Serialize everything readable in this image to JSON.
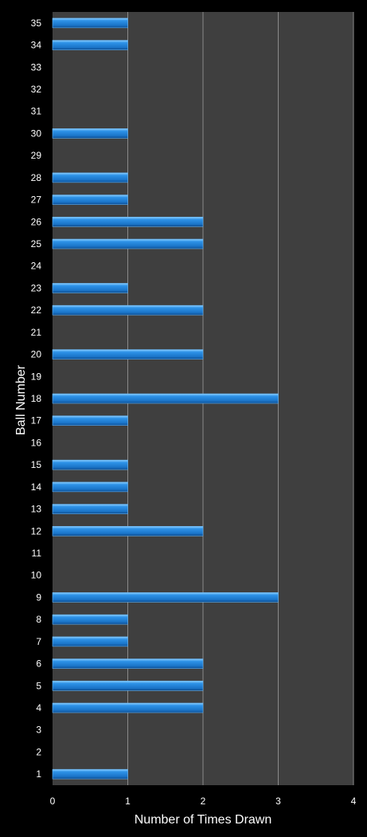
{
  "chart_data": {
    "type": "bar",
    "orientation": "horizontal",
    "title": "",
    "xlabel": "Number of Times Drawn",
    "ylabel": "Ball Number",
    "xlim": [
      0,
      4
    ],
    "xticks": [
      0,
      1,
      2,
      3,
      4
    ],
    "grid": true,
    "categories": [
      "1",
      "2",
      "3",
      "4",
      "5",
      "6",
      "7",
      "8",
      "9",
      "10",
      "11",
      "12",
      "13",
      "14",
      "15",
      "16",
      "17",
      "18",
      "19",
      "20",
      "21",
      "22",
      "23",
      "24",
      "25",
      "26",
      "27",
      "28",
      "29",
      "30",
      "31",
      "32",
      "33",
      "34",
      "35"
    ],
    "values": [
      1,
      0,
      0,
      2,
      2,
      2,
      1,
      1,
      3,
      0,
      0,
      2,
      1,
      1,
      1,
      0,
      1,
      3,
      0,
      2,
      0,
      2,
      1,
      0,
      2,
      2,
      1,
      1,
      0,
      1,
      0,
      0,
      0,
      1,
      1
    ],
    "colors": {
      "background": "#000000",
      "plot_area": "#3f3f3f",
      "bar": "#1c7fd8",
      "bar_highlight": "#63b4f5",
      "bar_shadow": "#0d4f96",
      "gridline": "#8a8a8a",
      "text": "#ffffff"
    }
  }
}
